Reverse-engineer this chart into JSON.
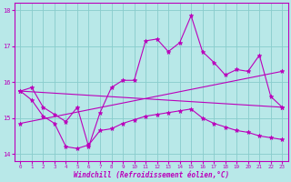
{
  "title": "",
  "xlabel": "Windchill (Refroidissement éolien,°C)",
  "ylabel": "",
  "xlim": [
    -0.5,
    23.5
  ],
  "ylim": [
    13.8,
    18.2
  ],
  "yticks": [
    14,
    15,
    16,
    17,
    18
  ],
  "xticks": [
    0,
    1,
    2,
    3,
    4,
    5,
    6,
    7,
    8,
    9,
    10,
    11,
    12,
    13,
    14,
    15,
    16,
    17,
    18,
    19,
    20,
    21,
    22,
    23
  ],
  "background_color": "#b8e8e8",
  "grid_color": "#88cccc",
  "line_color": "#bb00bb",
  "figwidth": 3.2,
  "figheight": 2.0,
  "lines": [
    {
      "x": [
        0,
        1,
        2,
        3,
        4,
        5,
        6,
        7,
        8,
        9,
        10,
        11,
        12,
        13,
        14,
        15,
        16,
        17,
        18,
        19,
        20,
        21,
        22,
        23
      ],
      "y": [
        15.75,
        15.85,
        15.3,
        15.1,
        14.9,
        15.3,
        14.2,
        15.15,
        15.85,
        16.05,
        16.05,
        17.15,
        17.2,
        16.85,
        17.1,
        17.85,
        16.85,
        16.55,
        16.2,
        16.35,
        16.3,
        16.75,
        15.6,
        15.3
      ]
    },
    {
      "x": [
        0,
        1,
        2,
        3,
        4,
        5,
        6,
        7,
        8,
        9,
        10,
        11,
        12,
        13,
        14,
        15,
        16,
        17,
        18,
        19,
        20,
        21,
        22,
        23
      ],
      "y": [
        15.75,
        15.5,
        15.05,
        14.85,
        14.2,
        14.15,
        14.25,
        14.65,
        14.7,
        14.85,
        14.95,
        15.05,
        15.1,
        15.15,
        15.2,
        15.25,
        15.0,
        14.85,
        14.75,
        14.65,
        14.6,
        14.5,
        14.45,
        14.4
      ]
    },
    {
      "x": [
        0,
        23
      ],
      "y": [
        14.85,
        16.3
      ]
    },
    {
      "x": [
        0,
        23
      ],
      "y": [
        15.75,
        15.3
      ]
    }
  ]
}
